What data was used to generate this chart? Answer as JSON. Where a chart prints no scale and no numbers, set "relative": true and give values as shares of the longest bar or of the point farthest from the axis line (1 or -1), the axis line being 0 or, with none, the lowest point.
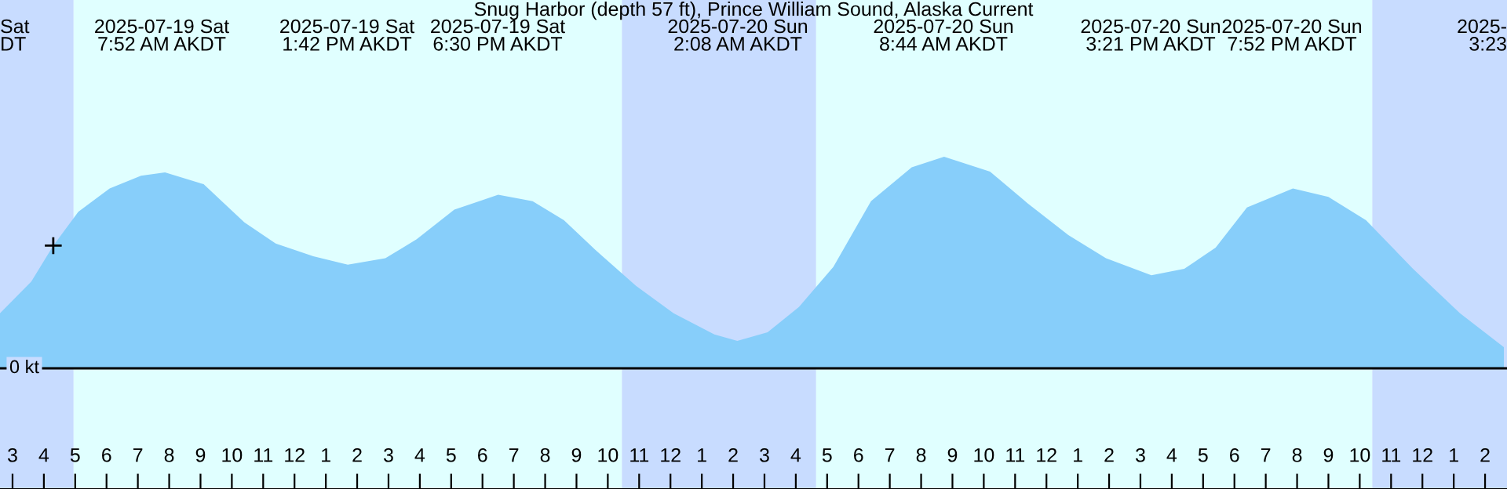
{
  "chart_data": {
    "type": "area",
    "title": "Snug Harbor (depth 57 ft), Prince William Sound, Alaska Current",
    "relative": true,
    "x": [
      "2025-07-19T02:36",
      "2025-07-19T03:36",
      "2025-07-19T04:18",
      "2025-07-19T05:06",
      "2025-07-19T06:06",
      "2025-07-19T07:06",
      "2025-07-19T07:52",
      "2025-07-19T09:06",
      "2025-07-19T10:24",
      "2025-07-19T11:24",
      "2025-07-19T12:36",
      "2025-07-19T13:42",
      "2025-07-19T14:54",
      "2025-07-19T15:54",
      "2025-07-19T17:06",
      "2025-07-19T18:30",
      "2025-07-19T19:36",
      "2025-07-19T20:36",
      "2025-07-19T21:36",
      "2025-07-19T22:54",
      "2025-07-20T00:06",
      "2025-07-20T01:24",
      "2025-07-20T02:08",
      "2025-07-20T03:06",
      "2025-07-20T04:06",
      "2025-07-20T05:12",
      "2025-07-20T06:24",
      "2025-07-20T07:42",
      "2025-07-20T08:44",
      "2025-07-20T10:12",
      "2025-07-20T11:24",
      "2025-07-20T12:42",
      "2025-07-20T13:54",
      "2025-07-20T15:21",
      "2025-07-20T16:24",
      "2025-07-20T17:24",
      "2025-07-20T18:24",
      "2025-07-20T19:52",
      "2025-07-20T21:00",
      "2025-07-20T22:12",
      "2025-07-20T23:42",
      "2025-07-21T01:12",
      "2025-07-21T02:36"
    ],
    "series": [
      {
        "color": "#87cefa",
        "values": [
          0.26,
          0.41,
          0.58,
          0.74,
          0.85,
          0.91,
          0.926,
          0.87,
          0.69,
          0.59,
          0.53,
          0.49,
          0.52,
          0.61,
          0.75,
          0.82,
          0.79,
          0.7,
          0.56,
          0.39,
          0.26,
          0.16,
          0.13,
          0.17,
          0.29,
          0.48,
          0.79,
          0.95,
          1.0,
          0.93,
          0.78,
          0.63,
          0.52,
          0.44,
          0.47,
          0.57,
          0.76,
          0.85,
          0.81,
          0.7,
          0.47,
          0.26,
          0.1
        ]
      },
      {
        "type": "scatter",
        "marker": "cross",
        "color": "#000000",
        "x": [
          "2025-07-19T04:18"
        ],
        "values": [
          0.58
        ]
      }
    ],
    "xlim": [
      "2025-07-19T02:36",
      "2025-07-21T02:42"
    ],
    "xticks": [
      {
        "value": "2025-07-19T03:00",
        "label": "3"
      },
      {
        "value": "2025-07-19T04:00",
        "label": "4"
      },
      {
        "value": "2025-07-19T05:00",
        "label": "5"
      },
      {
        "value": "2025-07-19T06:00",
        "label": "6"
      },
      {
        "value": "2025-07-19T07:00",
        "label": "7"
      },
      {
        "value": "2025-07-19T08:00",
        "label": "8"
      },
      {
        "value": "2025-07-19T09:00",
        "label": "9"
      },
      {
        "value": "2025-07-19T10:00",
        "label": "10"
      },
      {
        "value": "2025-07-19T11:00",
        "label": "11"
      },
      {
        "value": "2025-07-19T12:00",
        "label": "12"
      },
      {
        "value": "2025-07-19T13:00",
        "label": "1"
      },
      {
        "value": "2025-07-19T14:00",
        "label": "2"
      },
      {
        "value": "2025-07-19T15:00",
        "label": "3"
      },
      {
        "value": "2025-07-19T16:00",
        "label": "4"
      },
      {
        "value": "2025-07-19T17:00",
        "label": "5"
      },
      {
        "value": "2025-07-19T18:00",
        "label": "6"
      },
      {
        "value": "2025-07-19T19:00",
        "label": "7"
      },
      {
        "value": "2025-07-19T20:00",
        "label": "8"
      },
      {
        "value": "2025-07-19T21:00",
        "label": "9"
      },
      {
        "value": "2025-07-19T22:00",
        "label": "10"
      },
      {
        "value": "2025-07-19T23:00",
        "label": "11"
      },
      {
        "value": "2025-07-20T00:00",
        "label": "12"
      },
      {
        "value": "2025-07-20T01:00",
        "label": "1"
      },
      {
        "value": "2025-07-20T02:00",
        "label": "2"
      },
      {
        "value": "2025-07-20T03:00",
        "label": "3"
      },
      {
        "value": "2025-07-20T04:00",
        "label": "4"
      },
      {
        "value": "2025-07-20T05:00",
        "label": "5"
      },
      {
        "value": "2025-07-20T06:00",
        "label": "6"
      },
      {
        "value": "2025-07-20T07:00",
        "label": "7"
      },
      {
        "value": "2025-07-20T08:00",
        "label": "8"
      },
      {
        "value": "2025-07-20T09:00",
        "label": "9"
      },
      {
        "value": "2025-07-20T10:00",
        "label": "10"
      },
      {
        "value": "2025-07-20T11:00",
        "label": "11"
      },
      {
        "value": "2025-07-20T12:00",
        "label": "12"
      },
      {
        "value": "2025-07-20T13:00",
        "label": "1"
      },
      {
        "value": "2025-07-20T14:00",
        "label": "2"
      },
      {
        "value": "2025-07-20T15:00",
        "label": "3"
      },
      {
        "value": "2025-07-20T16:00",
        "label": "4"
      },
      {
        "value": "2025-07-20T17:00",
        "label": "5"
      },
      {
        "value": "2025-07-20T18:00",
        "label": "6"
      },
      {
        "value": "2025-07-20T19:00",
        "label": "7"
      },
      {
        "value": "2025-07-20T20:00",
        "label": "8"
      },
      {
        "value": "2025-07-20T21:00",
        "label": "9"
      },
      {
        "value": "2025-07-20T22:00",
        "label": "10"
      },
      {
        "value": "2025-07-20T23:00",
        "label": "11"
      },
      {
        "value": "2025-07-21T00:00",
        "label": "12"
      },
      {
        "value": "2025-07-21T01:00",
        "label": "1"
      },
      {
        "value": "2025-07-21T02:00",
        "label": "2"
      }
    ],
    "tick_labels": "x",
    "ref_lines": [
      {
        "axis": "y",
        "value": 0,
        "label": "0 kt",
        "color": "#000000"
      }
    ],
    "bands": [
      {
        "axis": "x",
        "from": "2025-07-19T02:36",
        "to": "2025-07-19T04:57",
        "color": "#c8dcff"
      },
      {
        "axis": "x",
        "from": "2025-07-19T04:57",
        "to": "2025-07-19T22:27",
        "color": "#e0ffff"
      },
      {
        "axis": "x",
        "from": "2025-07-19T22:27",
        "to": "2025-07-20T04:39",
        "color": "#c8dcff"
      },
      {
        "axis": "x",
        "from": "2025-07-20T04:39",
        "to": "2025-07-20T22:24",
        "color": "#e0ffff"
      },
      {
        "axis": "x",
        "from": "2025-07-20T22:24",
        "to": "2025-07-21T02:42",
        "color": "#c8dcff"
      }
    ],
    "annotations": [
      "Sat\nDT",
      "2025-07-19 Sat\n7:52 AM AKDT",
      "2025-07-19 Sat\n1:42 PM AKDT",
      "2025-07-19 Sat\n6:30 PM AKDT",
      "2025-07-20 Sun\n2:08 AM AKDT",
      "2025-07-20 Sun\n8:44 AM AKDT",
      "2025-07-20 Sun\n3:21 PM AKDT",
      "2025-07-20 Sun\n7:52 PM AKDT",
      "2025-\n3:23"
    ]
  }
}
